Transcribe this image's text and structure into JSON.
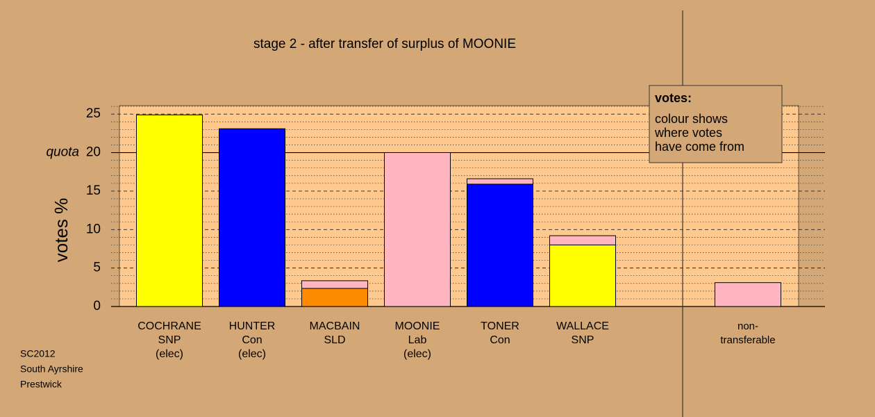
{
  "chart_data": {
    "type": "bar",
    "stacked": true,
    "title": "stage 2 - after transfer of surplus of MOONIE",
    "y_label": "votes %",
    "categories": [
      [
        "COCHRANE",
        "SNP",
        "(elec)"
      ],
      [
        "HUNTER",
        "Con",
        "(elec)"
      ],
      [
        "MACBAIN",
        "SLD"
      ],
      [
        "MOONIE",
        "Lab",
        "(elec)"
      ],
      [
        "TONER",
        "Con"
      ],
      [
        "WALLACE",
        "SNP"
      ],
      [
        "non-",
        "transferable"
      ]
    ],
    "series": [
      {
        "color": "#ffff00",
        "values": [
          24.9,
          null,
          null,
          null,
          null,
          8.0,
          null
        ]
      },
      {
        "color": "#0000ff",
        "values": [
          null,
          23.1,
          null,
          null,
          15.9,
          null,
          null
        ]
      },
      {
        "color": "#ff8c00",
        "values": [
          null,
          null,
          2.35,
          null,
          null,
          null,
          null
        ]
      },
      {
        "color": "#ffb6c1",
        "values": [
          null,
          null,
          1.0,
          20.0,
          0.7,
          1.2,
          3.1
        ]
      }
    ],
    "ylim": [
      0,
      26.1
    ],
    "yticks": [
      0,
      5,
      10,
      15,
      20,
      25
    ],
    "minor_yticks": [
      1,
      2,
      3,
      4,
      6,
      7,
      8,
      9,
      11,
      12,
      13,
      14,
      16,
      17,
      18,
      19,
      21,
      22,
      23,
      24,
      26
    ],
    "grid": true,
    "quota": 20,
    "quota_label": "quota",
    "legend_box": {
      "title": "votes:",
      "lines": [
        "colour shows",
        "where votes",
        "have come from"
      ]
    },
    "footnote": [
      "SC2012",
      "South Ayrshire",
      "Prestwick"
    ]
  }
}
